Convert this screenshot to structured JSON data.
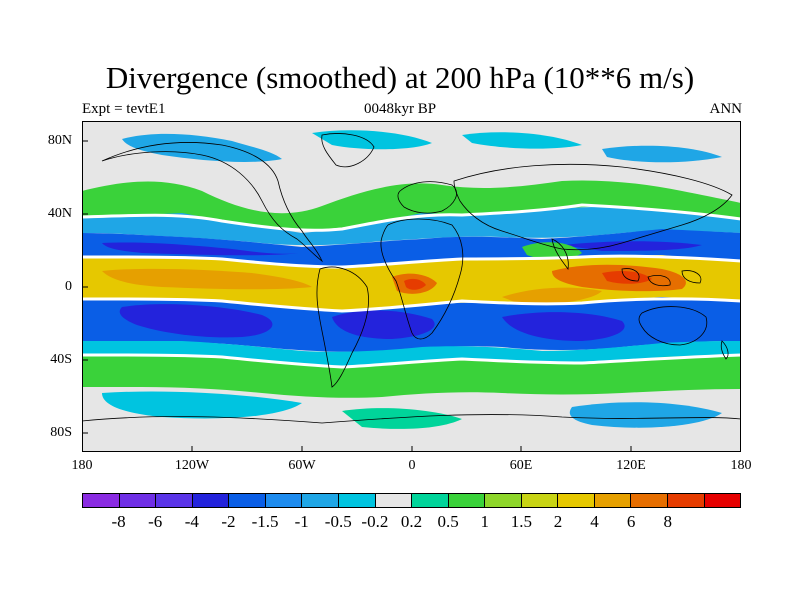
{
  "title": "Divergence (smoothed) at 200 hPa (10**6 m/s)",
  "subtitle_left": "Expt = tevtE1",
  "subtitle_center": "0048kyr BP",
  "subtitle_right": "ANN",
  "lat_ticks": [
    "80N",
    "40N",
    "0",
    "40S",
    "80S"
  ],
  "lon_ticks": [
    "180",
    "120W",
    "60W",
    "0",
    "60E",
    "120E",
    "180"
  ],
  "colorbar": {
    "colors": [
      "#8a2be2",
      "#6f2fe6",
      "#5a34e8",
      "#2323dc",
      "#0a5ee6",
      "#1e8cef",
      "#1fa6e6",
      "#00c4e0",
      "#e6e6e6",
      "#00d49a",
      "#3ad23a",
      "#8ed62a",
      "#c8d414",
      "#e6c800",
      "#e6a000",
      "#e66e00",
      "#e63c00",
      "#e60000"
    ],
    "labels": [
      "-8",
      "-6",
      "-4",
      "-2",
      "-1.5",
      "-1",
      "-0.5",
      "-0.2",
      "0.2",
      "0.5",
      "1",
      "1.5",
      "2",
      "4",
      "6",
      "8"
    ]
  },
  "map": {
    "background_color": "#e6e6e6",
    "bands": [
      {
        "name": "nh-storm-track-positive",
        "color": "#3ad23a"
      },
      {
        "name": "nh-subtropical-convergence",
        "color": "#1e8cef"
      },
      {
        "name": "equatorial-divergence",
        "color": "#e6a000"
      },
      {
        "name": "sh-subtropical-convergence",
        "color": "#2323dc"
      },
      {
        "name": "sh-storm-track-positive",
        "color": "#3ad23a"
      }
    ]
  }
}
